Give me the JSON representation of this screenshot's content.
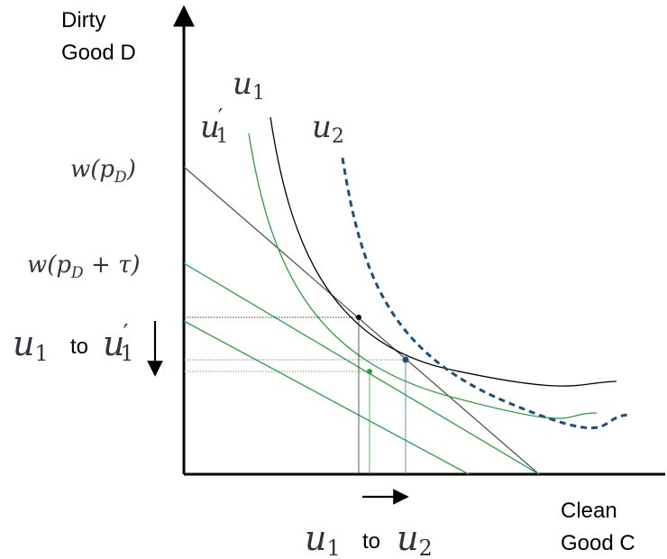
{
  "axes": {
    "y_label_line1": "Dirty",
    "y_label_line2": "Good D",
    "x_label_line1": "Clean",
    "x_label_line2": "Good C"
  },
  "budget_labels": {
    "original": "w(pD)",
    "taxed": "w(pD + τ)"
  },
  "curve_labels": {
    "u1": "u1",
    "u1_prime": "u'1",
    "u2": "u2"
  },
  "effects": {
    "vertical": {
      "from": "u1",
      "word": "to",
      "to": "u'1"
    },
    "horizontal": {
      "from": "u1",
      "word": "to",
      "to": "u2"
    }
  },
  "colors": {
    "axis": "#000000",
    "u1_curve": "#000000",
    "u1_prime_curve": "#2e9c3f",
    "u2_curve": "#1f4e79",
    "guide_black": "#000000",
    "guide_blue": "#4a6fb0",
    "guide_green": "#2e9c3f",
    "math_text": "#2f3440"
  }
}
